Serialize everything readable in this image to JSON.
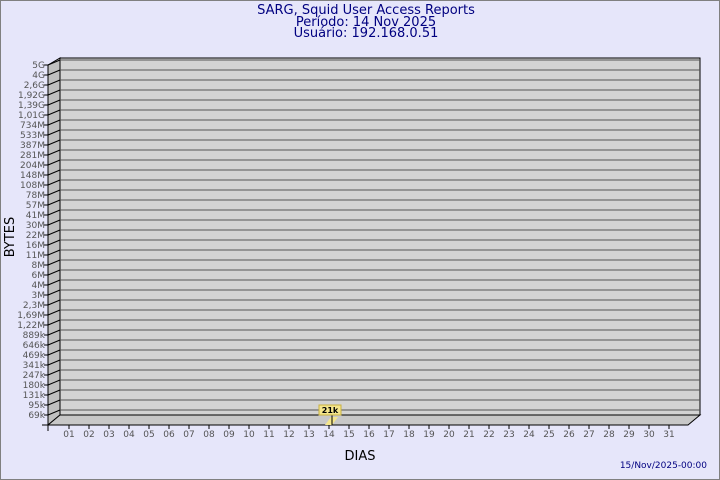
{
  "chart_data": {
    "type": "bar",
    "title": "SARG, Squid User Access Reports",
    "subtitle_period": "Período: 14 Nov 2025",
    "subtitle_user": "Usuário: 192.168.0.51",
    "xlabel": "DIAS",
    "ylabel": "BYTES",
    "y_scale": "log",
    "y_tick_labels": [
      "5G",
      "4G",
      "2,6G",
      "1,92G",
      "1,39G",
      "1,01G",
      "734M",
      "533M",
      "387M",
      "281M",
      "204M",
      "148M",
      "108M",
      "78M",
      "57M",
      "41M",
      "30M",
      "22M",
      "16M",
      "11M",
      "8M",
      "6M",
      "4M",
      "3M",
      "2,3M",
      "1,69M",
      "1,22M",
      "889k",
      "646k",
      "469k",
      "341k",
      "247k",
      "180k",
      "131k",
      "95k",
      "69k"
    ],
    "categories": [
      "01",
      "02",
      "03",
      "04",
      "05",
      "06",
      "07",
      "08",
      "09",
      "10",
      "11",
      "12",
      "13",
      "14",
      "15",
      "16",
      "17",
      "18",
      "19",
      "20",
      "21",
      "22",
      "23",
      "24",
      "25",
      "26",
      "27",
      "28",
      "29",
      "30",
      "31"
    ],
    "series": [
      {
        "values": [
          null,
          null,
          null,
          null,
          null,
          null,
          null,
          null,
          null,
          null,
          null,
          null,
          null,
          21000,
          null,
          null,
          null,
          null,
          null,
          null,
          null,
          null,
          null,
          null,
          null,
          null,
          null,
          null,
          null,
          null,
          null
        ]
      }
    ],
    "data_labels": {
      "14": "21k"
    },
    "grid": true,
    "colors": {
      "background": "#e6e6fa",
      "plot": "#d3d3d3",
      "title": "#000080",
      "label_box": "#f5e68c"
    }
  },
  "footer": {
    "timestamp": "15/Nov/2025-00:00"
  }
}
